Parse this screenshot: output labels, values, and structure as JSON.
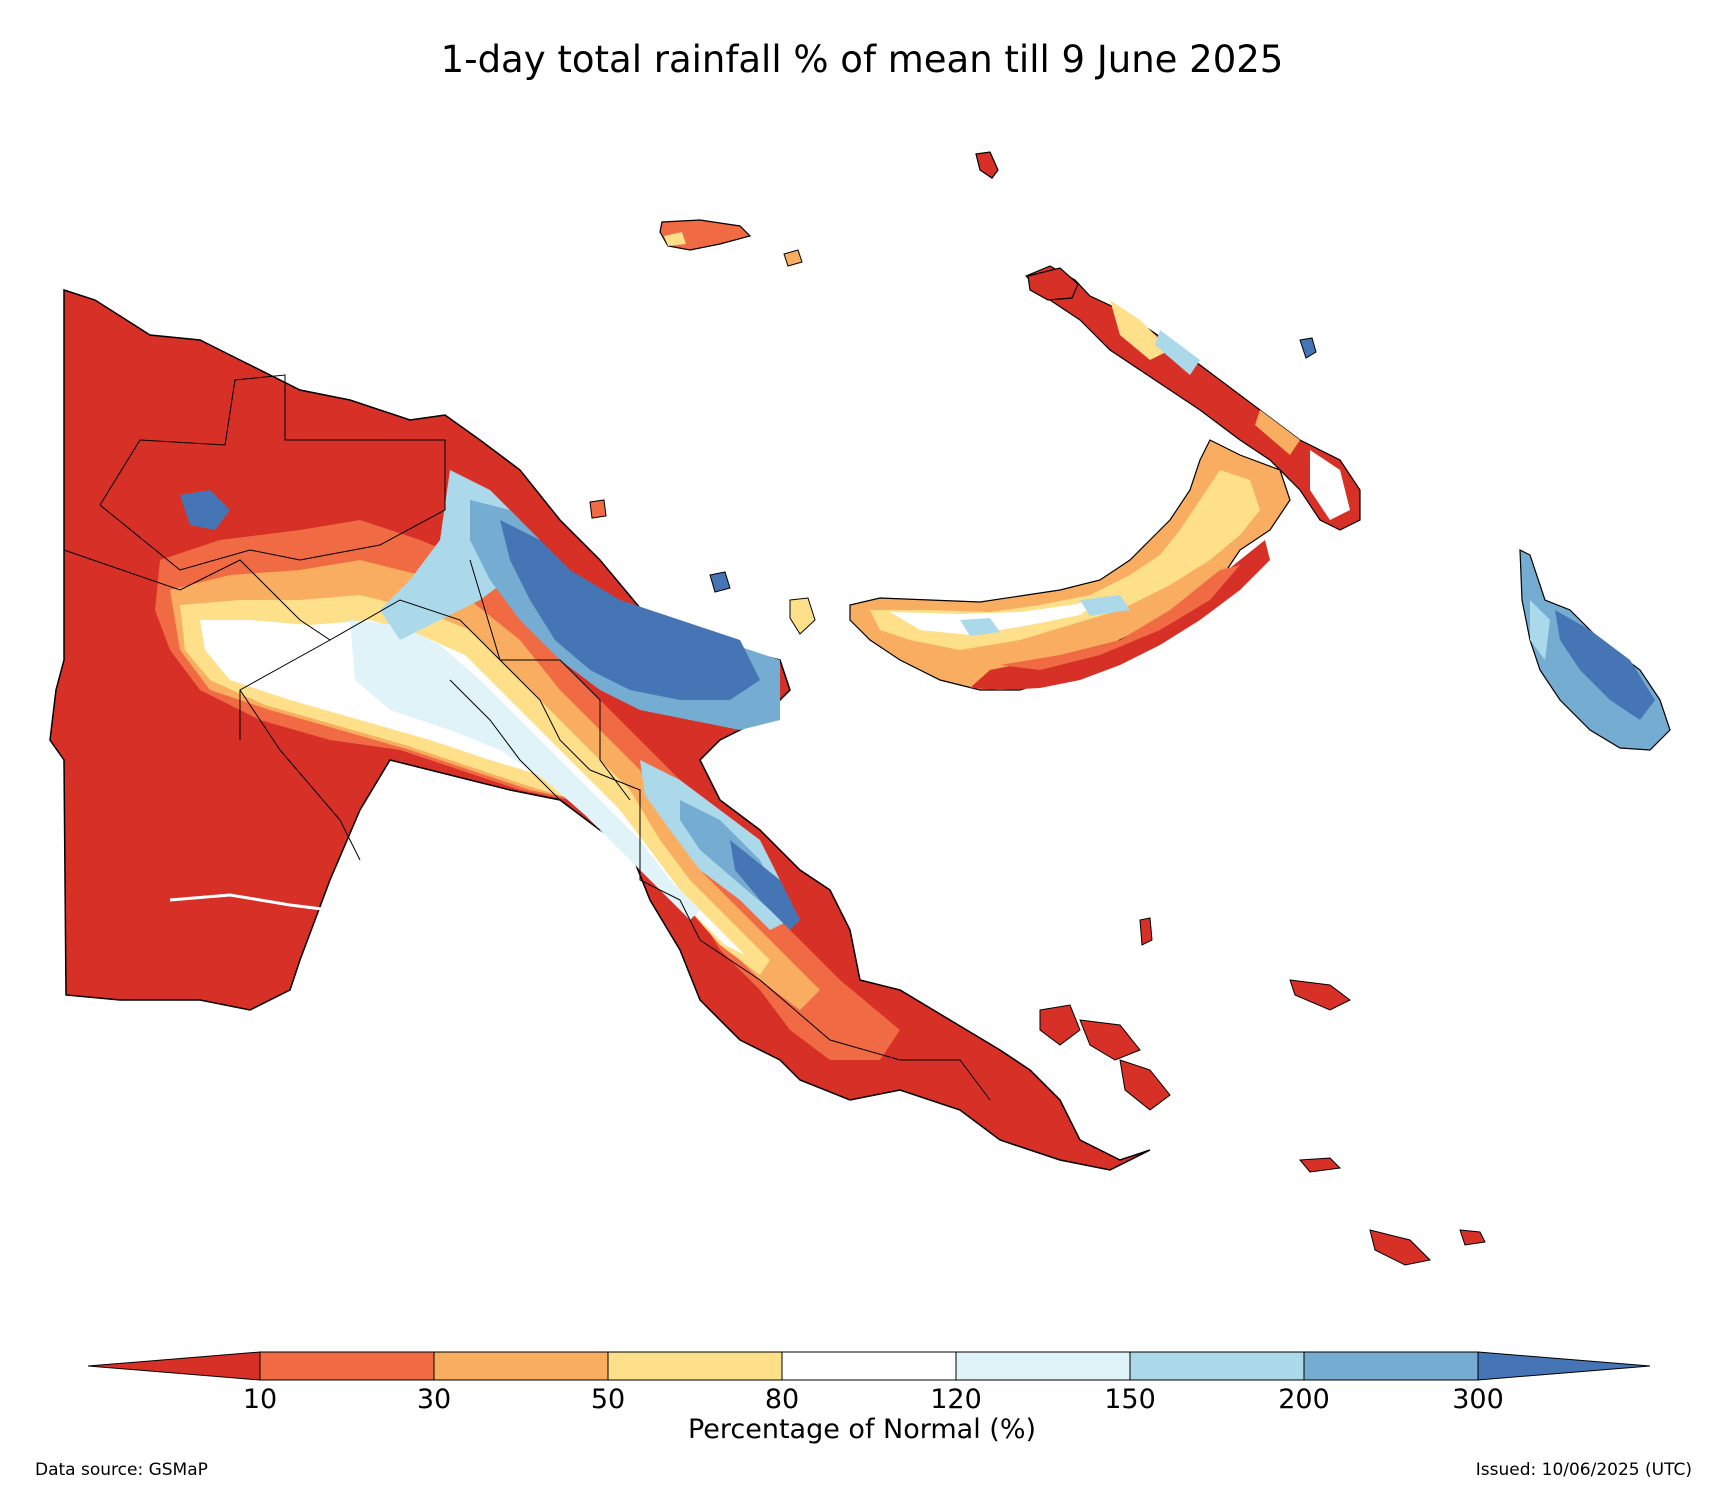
{
  "title": "1-day total rainfall % of mean till 9 June 2025",
  "colorbar": {
    "label": "Percentage of Normal (%)",
    "ticks": [
      "10",
      "30",
      "50",
      "80",
      "120",
      "150",
      "200",
      "300"
    ],
    "colors": {
      "below_10": "#d73027",
      "c10_30": "#f06a43",
      "c30_50": "#f9ad60",
      "c50_80": "#fee08b",
      "c80_120": "#ffffff",
      "c120_150": "#e0f3f8",
      "c150_200": "#abd9e9",
      "c200_300": "#74add1",
      "above_300": "#4575b4"
    }
  },
  "footer": {
    "source": "Data source: GSMaP",
    "issued": "Issued: 10/06/2025 (UTC)"
  }
}
